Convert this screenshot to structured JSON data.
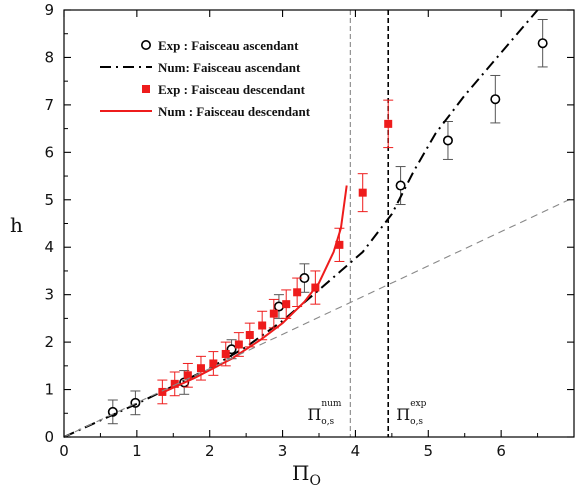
{
  "chart_data": {
    "type": "scatter",
    "xlabel": "Π",
    "xlabel_sub": "O",
    "ylabel": "h",
    "xlim": [
      0,
      7
    ],
    "ylim": [
      0,
      9
    ],
    "xticks": [
      0,
      1,
      2,
      3,
      4,
      5,
      6
    ],
    "yticks": [
      0,
      1,
      2,
      3,
      4,
      5,
      6,
      7,
      8,
      9
    ],
    "legend_position": "top-left",
    "series": [
      {
        "name": "Exp : Faisceau ascendant",
        "kind": "points",
        "marker": "open-circle",
        "color": "#000000",
        "points": [
          {
            "x": 0.67,
            "y": 0.53,
            "err": 0.25
          },
          {
            "x": 0.98,
            "y": 0.72,
            "err": 0.25
          },
          {
            "x": 1.65,
            "y": 1.15,
            "err": 0.25
          },
          {
            "x": 2.3,
            "y": 1.85,
            "err": 0.2
          },
          {
            "x": 2.95,
            "y": 2.75,
            "err": 0.25
          },
          {
            "x": 3.3,
            "y": 3.35,
            "err": 0.3
          },
          {
            "x": 4.62,
            "y": 5.3,
            "err": 0.4
          },
          {
            "x": 5.27,
            "y": 6.25,
            "err": 0.4
          },
          {
            "x": 5.92,
            "y": 7.12,
            "err": 0.5
          },
          {
            "x": 6.57,
            "y": 8.3,
            "err": 0.5
          }
        ]
      },
      {
        "name": "Num: Faisceau ascendant",
        "kind": "line",
        "dash": "dash-dot",
        "color": "#000000",
        "points": [
          {
            "x": 0,
            "y": 0
          },
          {
            "x": 1,
            "y": 0.7
          },
          {
            "x": 2,
            "y": 1.45
          },
          {
            "x": 2.5,
            "y": 1.9
          },
          {
            "x": 3,
            "y": 2.45
          },
          {
            "x": 3.5,
            "y": 3.1
          },
          {
            "x": 3.8,
            "y": 3.5
          },
          {
            "x": 4.1,
            "y": 3.9
          },
          {
            "x": 4.5,
            "y": 4.7
          },
          {
            "x": 4.8,
            "y": 5.6
          },
          {
            "x": 5.1,
            "y": 6.4
          },
          {
            "x": 5.5,
            "y": 7.2
          },
          {
            "x": 6,
            "y": 8.1
          },
          {
            "x": 6.5,
            "y": 9
          }
        ]
      },
      {
        "name": "Exp : Faisceau descendant",
        "kind": "points",
        "marker": "filled-square",
        "color": "#ee1c1c",
        "points": [
          {
            "x": 1.35,
            "y": 0.95,
            "err": 0.25
          },
          {
            "x": 1.52,
            "y": 1.12,
            "err": 0.25
          },
          {
            "x": 1.7,
            "y": 1.3,
            "err": 0.25
          },
          {
            "x": 1.88,
            "y": 1.45,
            "err": 0.25
          },
          {
            "x": 2.05,
            "y": 1.55,
            "err": 0.25
          },
          {
            "x": 2.22,
            "y": 1.75,
            "err": 0.25
          },
          {
            "x": 2.4,
            "y": 1.95,
            "err": 0.25
          },
          {
            "x": 2.55,
            "y": 2.15,
            "err": 0.25
          },
          {
            "x": 2.72,
            "y": 2.35,
            "err": 0.3
          },
          {
            "x": 2.88,
            "y": 2.6,
            "err": 0.3
          },
          {
            "x": 3.05,
            "y": 2.8,
            "err": 0.3
          },
          {
            "x": 3.2,
            "y": 3.05,
            "err": 0.3
          },
          {
            "x": 3.45,
            "y": 3.15,
            "err": 0.35
          },
          {
            "x": 3.78,
            "y": 4.05,
            "err": 0.35
          },
          {
            "x": 4.1,
            "y": 5.15,
            "err": 0.4
          },
          {
            "x": 4.45,
            "y": 6.6,
            "err": 0.5
          }
        ]
      },
      {
        "name": "Num : Faisceau descendant",
        "kind": "line",
        "dash": "solid",
        "color": "#ee1c1c",
        "points": [
          {
            "x": 1.3,
            "y": 0.9
          },
          {
            "x": 1.8,
            "y": 1.25
          },
          {
            "x": 2.3,
            "y": 1.65
          },
          {
            "x": 2.7,
            "y": 2.05
          },
          {
            "x": 3.0,
            "y": 2.4
          },
          {
            "x": 3.3,
            "y": 2.85
          },
          {
            "x": 3.5,
            "y": 3.25
          },
          {
            "x": 3.7,
            "y": 3.9
          },
          {
            "x": 3.8,
            "y": 4.4
          },
          {
            "x": 3.88,
            "y": 5.3
          }
        ]
      },
      {
        "kind": "line",
        "dash": "dashed",
        "color": "#888888",
        "points": [
          {
            "x": 0,
            "y": 0
          },
          {
            "x": 7,
            "y": 5.05
          }
        ]
      }
    ],
    "vlines": [
      {
        "x": 3.93,
        "color": "#888888",
        "label": "Π",
        "sub": "o,s",
        "sup": "num"
      },
      {
        "x": 4.45,
        "color": "#000000",
        "label": "Π",
        "sub": "o,s",
        "sup": "exp"
      }
    ]
  }
}
